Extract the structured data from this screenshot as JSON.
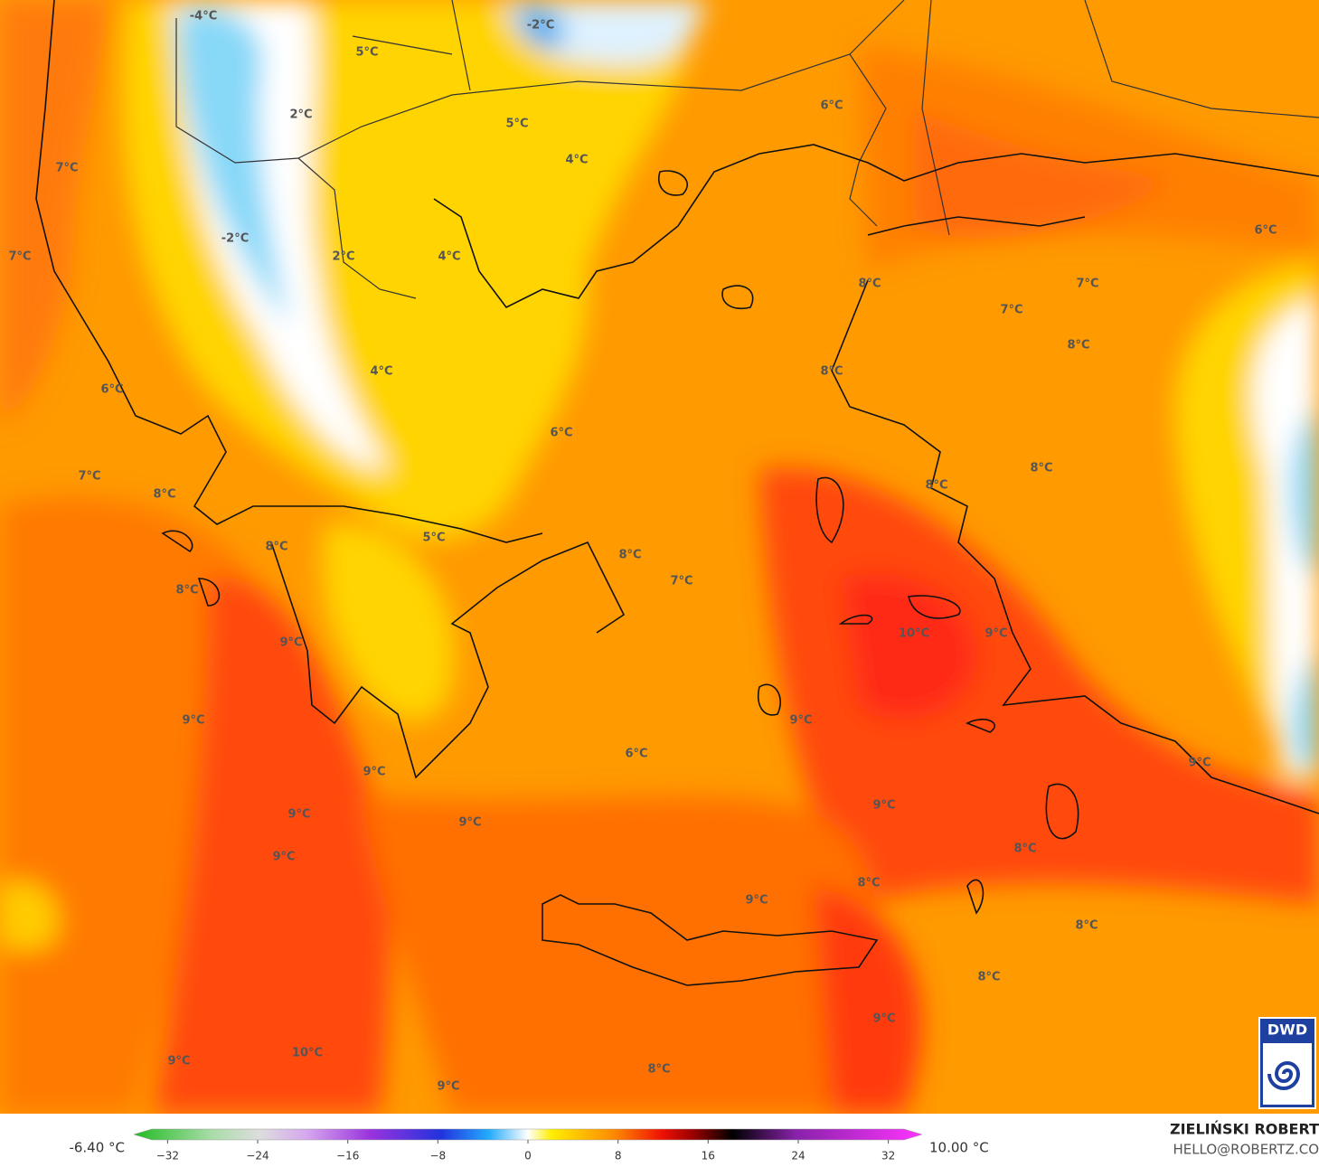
{
  "map": {
    "labels": [
      "-4°C",
      "-2°C",
      "5°C",
      "2°C",
      "5°C",
      "6°C",
      "4°C",
      "7°C",
      "-2°C",
      "7°C",
      "2°C",
      "4°C",
      "6°C",
      "8°C",
      "7°C",
      "7°C",
      "8°C",
      "4°C",
      "8°C",
      "6°C",
      "6°C",
      "8°C",
      "7°C",
      "8°C",
      "8°C",
      "5°C",
      "8°C",
      "8°C",
      "7°C",
      "8°C",
      "10°C",
      "9°C",
      "9°C",
      "9°C",
      "9°C",
      "6°C",
      "9°C",
      "9°C",
      "9°C",
      "9°C",
      "9°C",
      "8°C",
      "9°C",
      "8°C",
      "9°C",
      "8°C",
      "8°C",
      "9°C",
      "10°C",
      "9°C",
      "8°C",
      "9°C"
    ],
    "logo": "DWD"
  },
  "colorbar": {
    "range": [
      -35,
      35
    ],
    "ticks": [
      {
        "value": -32,
        "label": "−32"
      },
      {
        "value": -24,
        "label": "−24"
      },
      {
        "value": -16,
        "label": "−16"
      },
      {
        "value": -8,
        "label": "−8"
      },
      0,
      8,
      16,
      24,
      32
    ],
    "min_label": "-6.40 °C",
    "max_label": "10.00 °C"
  },
  "credits": {
    "author": "ZIELIŃSKI ROBERT",
    "contact": "HELLO@ROBERTZ.CO"
  }
}
